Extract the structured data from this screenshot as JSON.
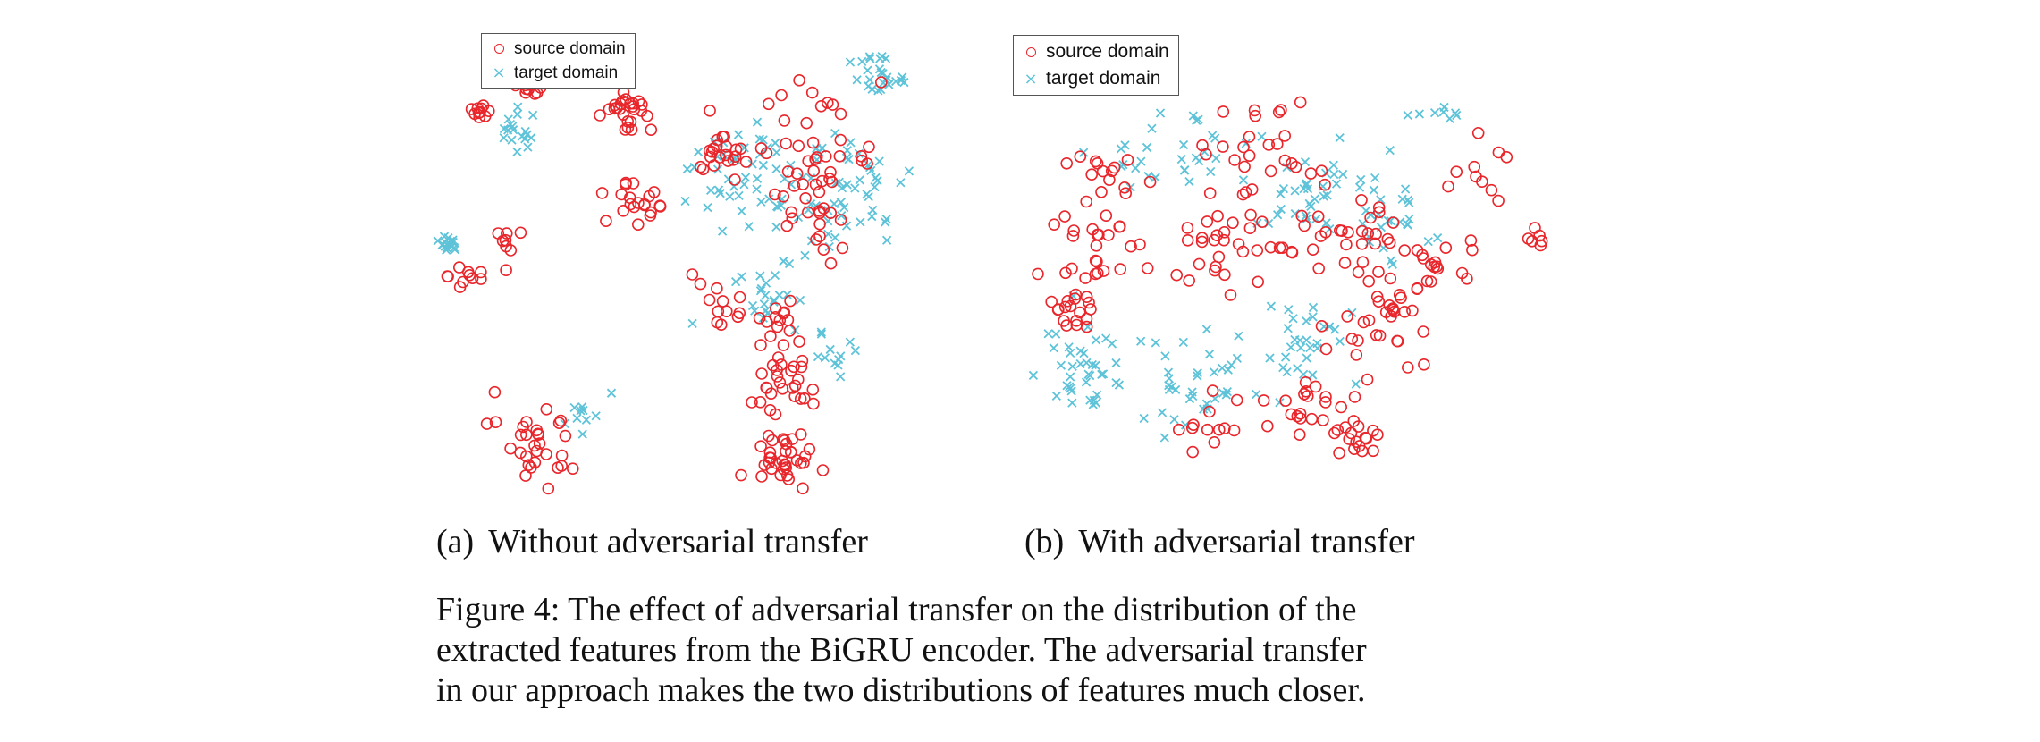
{
  "figure": {
    "caption_lines": [
      "Figure 4: The effect of adversarial transfer on the distribution of the",
      "extracted features from the BiGRU encoder. The adversarial transfer",
      "in our approach makes the two distributions of features much closer."
    ],
    "colors": {
      "source": "#e8262b",
      "target": "#5ec3d8"
    }
  },
  "panels": [
    {
      "tag": "(a)",
      "title": "Without adversarial transfer",
      "legend": [
        "source domain",
        "target domain"
      ]
    },
    {
      "tag": "(b)",
      "title": "With adversarial transfer",
      "legend": [
        "source domain",
        "target domain"
      ]
    }
  ],
  "chart_data": [
    {
      "type": "scatter",
      "title": "(a) Without adversarial transfer",
      "legend_placement": "top-left",
      "axes_visible": false,
      "series": [
        {
          "name": "source domain",
          "marker": "circle",
          "clusters": [
            {
              "x": 0.08,
              "y": 0.16,
              "n": 10,
              "spread": 0.01
            },
            {
              "x": 0.17,
              "y": 0.11,
              "n": 10,
              "spread": 0.01
            },
            {
              "x": 0.35,
              "y": 0.07,
              "n": 8,
              "spread": 0.01
            },
            {
              "x": 0.37,
              "y": 0.16,
              "n": 25,
              "spread": 0.02
            },
            {
              "x": 0.55,
              "y": 0.24,
              "n": 22,
              "spread": 0.025
            },
            {
              "x": 0.72,
              "y": 0.25,
              "n": 45,
              "spread": 0.06
            },
            {
              "x": 0.55,
              "y": 0.55,
              "n": 12,
              "spread": 0.03
            },
            {
              "x": 0.38,
              "y": 0.35,
              "n": 20,
              "spread": 0.04
            },
            {
              "x": 0.06,
              "y": 0.5,
              "n": 10,
              "spread": 0.02
            },
            {
              "x": 0.14,
              "y": 0.42,
              "n": 8,
              "spread": 0.02
            },
            {
              "x": 0.66,
              "y": 0.7,
              "n": 30,
              "spread": 0.04
            },
            {
              "x": 0.65,
              "y": 0.58,
              "n": 12,
              "spread": 0.02
            },
            {
              "x": 0.2,
              "y": 0.84,
              "n": 30,
              "spread": 0.04
            },
            {
              "x": 0.67,
              "y": 0.88,
              "n": 35,
              "spread": 0.03
            },
            {
              "x": 0.74,
              "y": 0.4,
              "n": 10,
              "spread": 0.03
            }
          ]
        },
        {
          "name": "target domain",
          "marker": "x",
          "clusters": [
            {
              "x": 0.02,
              "y": 0.43,
              "n": 18,
              "spread": 0.01
            },
            {
              "x": 0.16,
              "y": 0.2,
              "n": 18,
              "spread": 0.02
            },
            {
              "x": 0.58,
              "y": 0.28,
              "n": 40,
              "spread": 0.05
            },
            {
              "x": 0.76,
              "y": 0.32,
              "n": 60,
              "spread": 0.07
            },
            {
              "x": 0.86,
              "y": 0.08,
              "n": 25,
              "spread": 0.03
            },
            {
              "x": 0.63,
              "y": 0.55,
              "n": 22,
              "spread": 0.04
            },
            {
              "x": 0.76,
              "y": 0.66,
              "n": 12,
              "spread": 0.02
            },
            {
              "x": 0.28,
              "y": 0.78,
              "n": 10,
              "spread": 0.02
            }
          ]
        }
      ]
    },
    {
      "type": "scatter",
      "title": "(b) With adversarial transfer",
      "legend_placement": "top-left",
      "axes_visible": false,
      "series": [
        {
          "name": "source domain",
          "marker": "circle",
          "clusters": [
            {
              "x": 0.22,
              "y": 0.3,
              "n": 15,
              "spread": 0.03
            },
            {
              "x": 0.2,
              "y": 0.45,
              "n": 25,
              "spread": 0.04
            },
            {
              "x": 0.15,
              "y": 0.57,
              "n": 18,
              "spread": 0.03
            },
            {
              "x": 0.4,
              "y": 0.42,
              "n": 30,
              "spread": 0.05
            },
            {
              "x": 0.48,
              "y": 0.23,
              "n": 25,
              "spread": 0.05
            },
            {
              "x": 0.62,
              "y": 0.42,
              "n": 30,
              "spread": 0.05
            },
            {
              "x": 0.7,
              "y": 0.58,
              "n": 30,
              "spread": 0.05
            },
            {
              "x": 0.58,
              "y": 0.75,
              "n": 22,
              "spread": 0.04
            },
            {
              "x": 0.4,
              "y": 0.8,
              "n": 12,
              "spread": 0.04
            },
            {
              "x": 0.8,
              "y": 0.48,
              "n": 18,
              "spread": 0.04
            },
            {
              "x": 0.85,
              "y": 0.28,
              "n": 10,
              "spread": 0.03
            },
            {
              "x": 0.97,
              "y": 0.42,
              "n": 6,
              "spread": 0.01
            },
            {
              "x": 0.66,
              "y": 0.84,
              "n": 15,
              "spread": 0.02
            }
          ]
        },
        {
          "name": "target domain",
          "marker": "x",
          "clusters": [
            {
              "x": 0.18,
              "y": 0.7,
              "n": 40,
              "spread": 0.04
            },
            {
              "x": 0.36,
              "y": 0.72,
              "n": 35,
              "spread": 0.05
            },
            {
              "x": 0.55,
              "y": 0.62,
              "n": 30,
              "spread": 0.05
            },
            {
              "x": 0.58,
              "y": 0.32,
              "n": 35,
              "spread": 0.06
            },
            {
              "x": 0.38,
              "y": 0.24,
              "n": 20,
              "spread": 0.05
            },
            {
              "x": 0.72,
              "y": 0.38,
              "n": 25,
              "spread": 0.05
            },
            {
              "x": 0.8,
              "y": 0.16,
              "n": 8,
              "spread": 0.02
            },
            {
              "x": 0.24,
              "y": 0.26,
              "n": 10,
              "spread": 0.03
            }
          ]
        }
      ]
    }
  ]
}
